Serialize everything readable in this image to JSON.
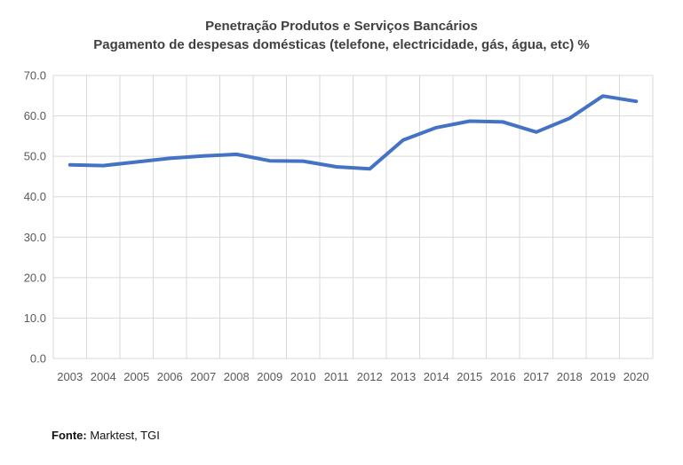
{
  "title": {
    "line1": "Penetração Produtos e Serviços Bancários",
    "line2": "Pagamento de despesas domésticas (telefone, electricidade, gás, água, etc) %"
  },
  "footer": {
    "label": "Fonte:",
    "text": " Marktest, TGI"
  },
  "colors": {
    "line": "#4472C4",
    "gridline": "#D9D9D9",
    "axis_text": "#595959",
    "title_text": "#404040"
  },
  "chart_data": {
    "type": "line",
    "title": "Penetração Produtos e Serviços Bancários",
    "subtitle": "Pagamento de despesas domésticas (telefone, electricidade, gás, água, etc) %",
    "categories": [
      "2003",
      "2004",
      "2005",
      "2006",
      "2007",
      "2008",
      "2009",
      "2010",
      "2011",
      "2012",
      "2013",
      "2014",
      "2015",
      "2016",
      "2017",
      "2018",
      "2019",
      "2020"
    ],
    "values": [
      47.9,
      47.7,
      48.6,
      49.5,
      50.1,
      50.5,
      48.9,
      48.8,
      47.4,
      46.9,
      54.0,
      57.1,
      58.7,
      58.5,
      56.0,
      59.4,
      64.9,
      63.6
    ],
    "ylim": [
      0,
      70
    ],
    "ytick_step": 10,
    "ytick_labels": [
      "0.0",
      "10.0",
      "20.0",
      "30.0",
      "40.0",
      "50.0",
      "60.0",
      "70.0"
    ],
    "xlabel": "",
    "ylabel": "",
    "grid": true,
    "legend": false,
    "legend_position": "none",
    "line_color": "#4472C4"
  }
}
